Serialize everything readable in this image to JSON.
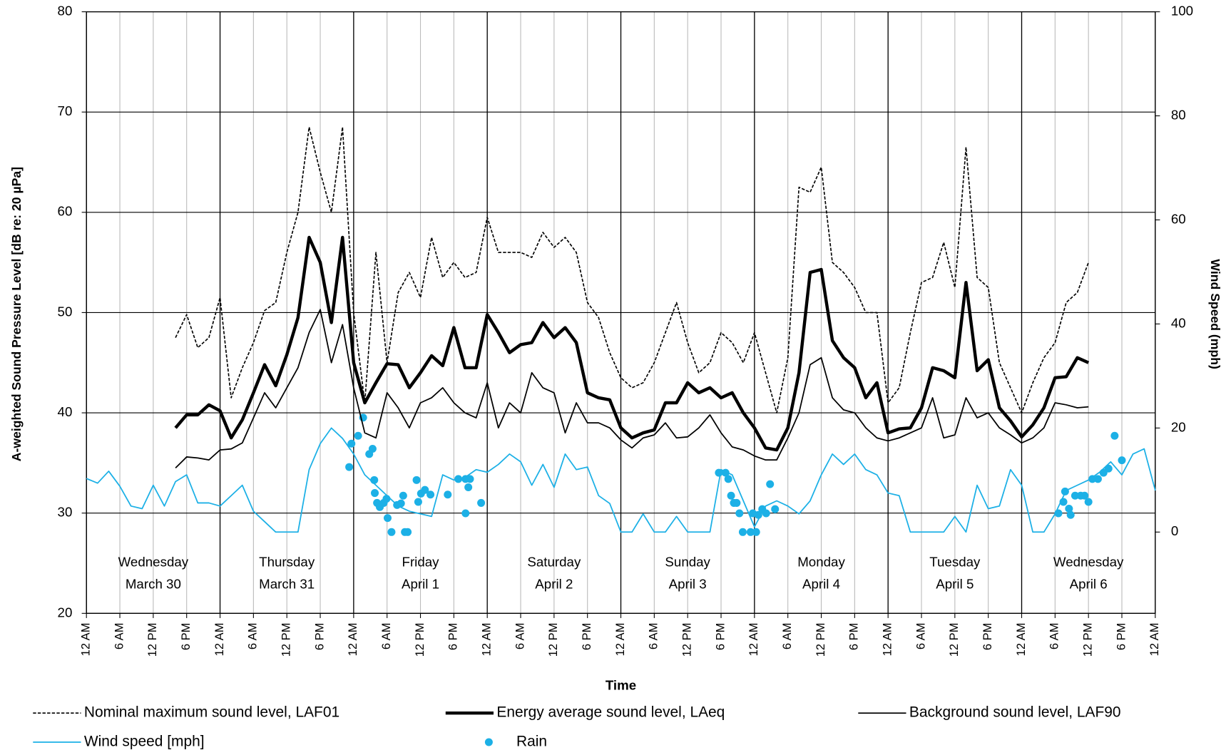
{
  "chart_data": {
    "type": "line",
    "x_label": "Time",
    "y_label": "A-weighted Sound Pressure Level [dB re: 20 µPa]",
    "y2_label": "Wind Speed (mph)",
    "xlim": [
      0,
      192
    ],
    "xticks": [
      {
        "value": 0,
        "label": "12 AM"
      },
      {
        "value": 6,
        "label": "6 AM"
      },
      {
        "value": 12,
        "label": "12 PM"
      },
      {
        "value": 18,
        "label": "6 PM"
      },
      {
        "value": 24,
        "label": "12 AM"
      },
      {
        "value": 30,
        "label": "6 AM"
      },
      {
        "value": 36,
        "label": "12 PM"
      },
      {
        "value": 42,
        "label": "6 PM"
      },
      {
        "value": 48,
        "label": "12 AM"
      },
      {
        "value": 54,
        "label": "6 AM"
      },
      {
        "value": 60,
        "label": "12 PM"
      },
      {
        "value": 66,
        "label": "6 PM"
      },
      {
        "value": 72,
        "label": "12 AM"
      },
      {
        "value": 78,
        "label": "6 AM"
      },
      {
        "value": 84,
        "label": "12 PM"
      },
      {
        "value": 90,
        "label": "6 PM"
      },
      {
        "value": 96,
        "label": "12 AM"
      },
      {
        "value": 102,
        "label": "6 AM"
      },
      {
        "value": 108,
        "label": "12 PM"
      },
      {
        "value": 114,
        "label": "6 PM"
      },
      {
        "value": 120,
        "label": "12 AM"
      },
      {
        "value": 126,
        "label": "6 AM"
      },
      {
        "value": 132,
        "label": "12 PM"
      },
      {
        "value": 138,
        "label": "6 PM"
      },
      {
        "value": 144,
        "label": "12 AM"
      },
      {
        "value": 150,
        "label": "6 AM"
      },
      {
        "value": 156,
        "label": "12 PM"
      },
      {
        "value": 162,
        "label": "6 PM"
      },
      {
        "value": 168,
        "label": "12 AM"
      },
      {
        "value": 174,
        "label": "6 AM"
      },
      {
        "value": 180,
        "label": "12 PM"
      },
      {
        "value": 186,
        "label": "6 PM"
      },
      {
        "value": 192,
        "label": "12 AM"
      }
    ],
    "ylim": [
      20,
      80
    ],
    "yticks": [
      20,
      30,
      40,
      50,
      60,
      70,
      80
    ],
    "y2lim": [
      -15.625,
      100
    ],
    "y2ticks": [
      0,
      20,
      40,
      60,
      80,
      100
    ],
    "grid": true,
    "day_labels": [
      [
        "Wednesday",
        "March 30"
      ],
      [
        "Thursday",
        "March 31"
      ],
      [
        "Friday",
        "April 1"
      ],
      [
        "Saturday",
        "April 2"
      ],
      [
        "Sunday",
        "April 3"
      ],
      [
        "Monday",
        "April 4"
      ],
      [
        "Tuesday",
        "April 5"
      ],
      [
        "Wednesday",
        "April 6"
      ]
    ],
    "series": [
      {
        "name": "Nominal maximum sound level, LAF01",
        "color": "#000000",
        "style": "dashed",
        "x": [
          16,
          18,
          20,
          22,
          24,
          26,
          28,
          30,
          32,
          34,
          36,
          38,
          40,
          42,
          44,
          46,
          48,
          50,
          52,
          54,
          56,
          58,
          60,
          62,
          64,
          66,
          68,
          70,
          72,
          74,
          76,
          78,
          80,
          82,
          84,
          86,
          88,
          90,
          92,
          94,
          96,
          98,
          100,
          102,
          104,
          106,
          108,
          110,
          112,
          114,
          116,
          118,
          120,
          122,
          124,
          126,
          128,
          130,
          132,
          134,
          136,
          138,
          140,
          142,
          144,
          146,
          148,
          150,
          152,
          154,
          156,
          158,
          160,
          162,
          164,
          166,
          168,
          170,
          172,
          174,
          176,
          178,
          180
        ],
        "values": [
          47.5,
          49.8,
          46.5,
          47.5,
          51.5,
          41.5,
          44.5,
          47,
          50.2,
          51,
          56,
          60,
          68.5,
          64,
          60,
          68.5,
          50,
          41,
          56,
          45,
          52,
          54,
          51.5,
          57.5,
          53.5,
          55,
          53.5,
          54,
          59.5,
          56,
          56,
          56,
          55.5,
          58,
          56.5,
          57.5,
          56,
          51,
          49.5,
          46,
          43.5,
          42.5,
          43,
          45,
          48,
          51,
          47,
          44,
          45,
          48,
          47,
          45,
          48,
          44,
          40,
          45.5,
          62.5,
          62,
          64.5,
          55,
          54,
          52.5,
          50,
          50,
          41,
          42.5,
          48,
          53,
          53.5,
          57,
          52.5,
          66.5,
          53.5,
          52.5,
          45,
          42.5,
          40,
          43,
          45.5,
          47,
          51,
          52,
          55
        ]
      },
      {
        "name": "Energy average sound level, LAeq",
        "color": "#000000",
        "style": "thick",
        "x": [
          16,
          18,
          20,
          22,
          24,
          26,
          28,
          30,
          32,
          34,
          36,
          38,
          40,
          42,
          44,
          46,
          48,
          50,
          52,
          54,
          56,
          58,
          60,
          62,
          64,
          66,
          68,
          70,
          72,
          74,
          76,
          78,
          80,
          82,
          84,
          86,
          88,
          90,
          92,
          94,
          96,
          98,
          100,
          102,
          104,
          106,
          108,
          110,
          112,
          114,
          116,
          118,
          120,
          122,
          124,
          126,
          128,
          130,
          132,
          134,
          136,
          138,
          140,
          142,
          144,
          146,
          148,
          150,
          152,
          154,
          156,
          158,
          160,
          162,
          164,
          166,
          168,
          170,
          172,
          174,
          176,
          178,
          180
        ],
        "values": [
          38.5,
          39.8,
          39.8,
          40.8,
          40.2,
          37.5,
          39.3,
          42,
          44.8,
          42.7,
          45.8,
          49.5,
          57.5,
          55,
          49,
          57.5,
          45,
          41,
          43,
          44.9,
          44.8,
          42.5,
          44,
          45.7,
          44.7,
          48.5,
          44.5,
          44.5,
          49.8,
          48,
          46,
          46.8,
          47,
          49,
          47.5,
          48.5,
          47,
          42,
          41.5,
          41.3,
          38.5,
          37.5,
          38,
          38.3,
          41,
          41,
          43,
          42,
          42.5,
          41.5,
          42,
          40,
          38.5,
          36.5,
          36.3,
          38.5,
          44,
          54,
          54.3,
          47.2,
          45.5,
          44.5,
          41.5,
          43,
          38,
          38.4,
          38.5,
          40.5,
          44.5,
          44.2,
          43.5,
          53,
          44.2,
          45.3,
          40.5,
          39.2,
          37.6,
          38.8,
          40.5,
          43.5,
          43.6,
          45.5,
          45
        ]
      },
      {
        "name": "Background sound level, LAF90",
        "color": "#000000",
        "style": "solid",
        "x": [
          16,
          18,
          20,
          22,
          24,
          26,
          28,
          30,
          32,
          34,
          36,
          38,
          40,
          42,
          44,
          46,
          48,
          50,
          52,
          54,
          56,
          58,
          60,
          62,
          64,
          66,
          68,
          70,
          72,
          74,
          76,
          78,
          80,
          82,
          84,
          86,
          88,
          90,
          92,
          94,
          96,
          98,
          100,
          102,
          104,
          106,
          108,
          110,
          112,
          114,
          116,
          118,
          120,
          122,
          124,
          126,
          128,
          130,
          132,
          134,
          136,
          138,
          140,
          142,
          144,
          146,
          148,
          150,
          152,
          154,
          156,
          158,
          160,
          162,
          164,
          166,
          168,
          170,
          172,
          174,
          176,
          178,
          180
        ],
        "values": [
          34.5,
          35.6,
          35.5,
          35.3,
          36.3,
          36.4,
          37,
          39.5,
          42,
          40.5,
          42.5,
          44.5,
          48,
          50.3,
          45,
          48.8,
          42.5,
          38,
          37.5,
          42,
          40.5,
          38.5,
          41,
          41.5,
          42.5,
          41,
          40,
          39.5,
          43,
          38.5,
          41,
          40,
          44,
          42.5,
          42,
          38,
          41,
          39,
          39,
          38.5,
          37.3,
          36.5,
          37.5,
          37.8,
          39,
          37.5,
          37.6,
          38.5,
          39.8,
          38,
          36.6,
          36.3,
          35.7,
          35.3,
          35.3,
          37.5,
          40,
          44.8,
          45.5,
          41.5,
          40.3,
          40,
          38.5,
          37.5,
          37.2,
          37.5,
          38,
          38.5,
          41.5,
          37.5,
          37.8,
          41.5,
          39.5,
          40,
          38.5,
          37.8,
          37,
          37.5,
          38.5,
          41,
          40.8,
          40.5,
          40.6
        ]
      },
      {
        "name": "Wind speed [mph]",
        "color": "#1cb0e6",
        "style": "solid",
        "axis": "y2",
        "x": [
          0,
          2,
          4,
          6,
          8,
          10,
          12,
          14,
          16,
          18,
          20,
          22,
          24,
          26,
          28,
          30,
          32,
          34,
          36,
          38,
          40,
          42,
          44,
          46,
          48,
          50,
          52,
          54,
          56,
          58,
          60,
          62,
          64,
          66,
          68,
          70,
          72,
          74,
          76,
          78,
          80,
          82,
          84,
          86,
          88,
          90,
          92,
          94,
          96,
          98,
          100,
          102,
          104,
          106,
          108,
          110,
          112,
          114,
          116,
          118,
          120,
          122,
          124,
          126,
          128,
          130,
          132,
          134,
          136,
          138,
          140,
          142,
          144,
          146,
          148,
          150,
          152,
          154,
          156,
          158,
          160,
          162,
          164,
          166,
          168,
          170,
          172,
          174,
          176,
          178,
          180,
          182,
          184,
          186,
          188,
          190,
          192
        ],
        "values": [
          10.3,
          9.4,
          11.7,
          8.8,
          5,
          4.5,
          9,
          5,
          9.7,
          11,
          5.6,
          5.6,
          5,
          7,
          9,
          4,
          2,
          0,
          0,
          0,
          12,
          17,
          20,
          18,
          15,
          11,
          9,
          7,
          5,
          4,
          3.5,
          3,
          11,
          10,
          10.5,
          12,
          11.5,
          13,
          15,
          13.5,
          9,
          13,
          8.6,
          15,
          12,
          12.5,
          7,
          5.5,
          0,
          0,
          3.5,
          0,
          0,
          3,
          0,
          0,
          0,
          12,
          11,
          6,
          1,
          5,
          6,
          5,
          3.5,
          6,
          11,
          15,
          13,
          15,
          12,
          11,
          7.5,
          7,
          0,
          0,
          0,
          0,
          3,
          0,
          9,
          4.5,
          5,
          12,
          9,
          0,
          0,
          3.5,
          8,
          9,
          10,
          11.5,
          13.5,
          11,
          15,
          16,
          8
        ]
      },
      {
        "name": "Rain",
        "color": "#1cb0e6",
        "type": "scatter",
        "axis": "y2",
        "x": [
          47.2,
          47.6,
          48.8,
          49.7,
          50.8,
          51.4,
          51.7,
          51.8,
          52.2,
          52.7,
          53.4,
          53.9,
          54.1,
          54.8,
          55.8,
          56.5,
          56.9,
          57.2,
          57.7,
          59.3,
          59.6,
          60.1,
          60.8,
          61.8,
          64.9,
          66.8,
          68.1,
          68.1,
          68.6,
          68.9,
          70.9,
          113.6,
          114.8,
          115.3,
          115.8,
          116.3,
          116.8,
          117.3,
          117.9,
          119.3,
          119.7,
          120.3,
          120.7,
          121.4,
          122.1,
          122.8,
          123.7,
          174.6,
          175.5,
          175.8,
          176.5,
          176.8,
          177.6,
          178.6,
          179.3,
          180,
          180.7,
          181.7,
          182.7,
          183.6,
          184.7,
          186
        ],
        "values": [
          12.5,
          17,
          18.5,
          22,
          15,
          16,
          10,
          7.5,
          5.6,
          4.8,
          5.6,
          6.4,
          2.7,
          0,
          5.2,
          5.5,
          7,
          0,
          0,
          10,
          5.8,
          7.4,
          8.1,
          7.2,
          7.2,
          10.2,
          10.2,
          3.6,
          8.6,
          10.2,
          5.6,
          11.4,
          11.4,
          10.2,
          7,
          5.6,
          5.6,
          3.6,
          0,
          0,
          3.6,
          0,
          3.3,
          4.4,
          3.6,
          9.2,
          4.4,
          3.6,
          5.8,
          7.8,
          4.5,
          3.3,
          7,
          7,
          7,
          5.8,
          10.2,
          10.2,
          11.4,
          12.2,
          18.5,
          13.8
        ]
      }
    ]
  }
}
